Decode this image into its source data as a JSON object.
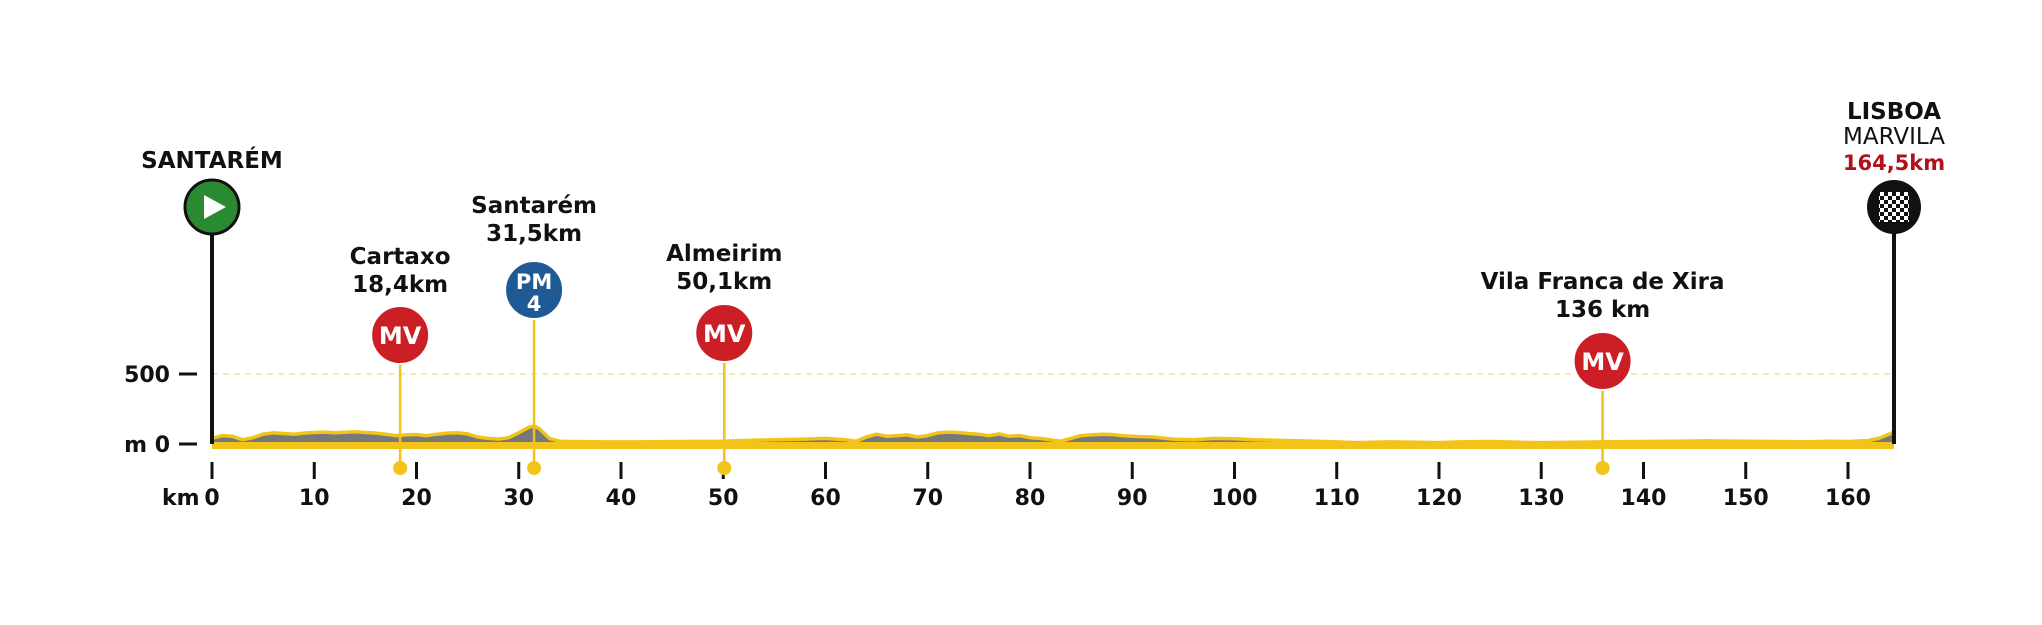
{
  "chart_data": {
    "type": "area",
    "x_unit": "km",
    "y_unit": "m",
    "xlim": [
      0,
      164.5
    ],
    "ylim": [
      0,
      500
    ],
    "x_ticks": [
      0,
      10,
      20,
      30,
      40,
      50,
      60,
      70,
      80,
      90,
      100,
      110,
      120,
      130,
      140,
      150,
      160
    ],
    "y_ticks": [
      {
        "value": 0,
        "label": "m 0"
      },
      {
        "value": 500,
        "label": "500"
      }
    ],
    "elevation": [
      [
        0,
        40
      ],
      [
        1,
        60
      ],
      [
        2,
        55
      ],
      [
        3,
        30
      ],
      [
        4,
        45
      ],
      [
        5,
        70
      ],
      [
        6,
        80
      ],
      [
        7,
        75
      ],
      [
        8,
        70
      ],
      [
        9,
        78
      ],
      [
        10,
        82
      ],
      [
        11,
        85
      ],
      [
        12,
        80
      ],
      [
        13,
        84
      ],
      [
        14,
        88
      ],
      [
        15,
        82
      ],
      [
        16,
        78
      ],
      [
        17,
        70
      ],
      [
        18,
        60
      ],
      [
        19,
        65
      ],
      [
        20,
        68
      ],
      [
        21,
        60
      ],
      [
        22,
        70
      ],
      [
        23,
        78
      ],
      [
        24,
        80
      ],
      [
        25,
        72
      ],
      [
        26,
        50
      ],
      [
        27,
        40
      ],
      [
        28,
        35
      ],
      [
        29,
        45
      ],
      [
        30,
        80
      ],
      [
        31,
        120
      ],
      [
        31.5,
        130
      ],
      [
        32,
        110
      ],
      [
        33,
        40
      ],
      [
        34,
        20
      ],
      [
        35,
        18
      ],
      [
        38,
        15
      ],
      [
        42,
        15
      ],
      [
        46,
        18
      ],
      [
        50,
        20
      ],
      [
        52,
        25
      ],
      [
        55,
        30
      ],
      [
        58,
        35
      ],
      [
        60,
        40
      ],
      [
        62,
        30
      ],
      [
        63,
        20
      ],
      [
        64,
        50
      ],
      [
        65,
        70
      ],
      [
        66,
        55
      ],
      [
        67,
        60
      ],
      [
        68,
        65
      ],
      [
        69,
        50
      ],
      [
        70,
        60
      ],
      [
        71,
        80
      ],
      [
        72,
        85
      ],
      [
        73,
        82
      ],
      [
        74,
        75
      ],
      [
        75,
        70
      ],
      [
        76,
        60
      ],
      [
        77,
        72
      ],
      [
        78,
        55
      ],
      [
        79,
        60
      ],
      [
        80,
        45
      ],
      [
        81,
        40
      ],
      [
        82,
        30
      ],
      [
        83,
        20
      ],
      [
        84,
        40
      ],
      [
        85,
        60
      ],
      [
        86,
        65
      ],
      [
        87,
        70
      ],
      [
        88,
        68
      ],
      [
        89,
        60
      ],
      [
        90,
        55
      ],
      [
        92,
        50
      ],
      [
        94,
        35
      ],
      [
        96,
        30
      ],
      [
        98,
        40
      ],
      [
        100,
        38
      ],
      [
        102,
        30
      ],
      [
        105,
        25
      ],
      [
        108,
        20
      ],
      [
        110,
        15
      ],
      [
        112,
        10
      ],
      [
        115,
        15
      ],
      [
        118,
        12
      ],
      [
        120,
        10
      ],
      [
        122,
        15
      ],
      [
        125,
        18
      ],
      [
        128,
        12
      ],
      [
        130,
        10
      ],
      [
        133,
        12
      ],
      [
        136,
        15
      ],
      [
        140,
        18
      ],
      [
        143,
        20
      ],
      [
        146,
        22
      ],
      [
        150,
        20
      ],
      [
        153,
        18
      ],
      [
        156,
        15
      ],
      [
        158,
        20
      ],
      [
        160,
        18
      ],
      [
        162,
        25
      ],
      [
        163,
        40
      ],
      [
        164.5,
        85
      ]
    ],
    "points": [
      {
        "kind": "start",
        "name": "SANTARÉM",
        "km": 0
      },
      {
        "kind": "MV",
        "name": "Cartaxo",
        "km_label": "18,4km",
        "km": 18.4
      },
      {
        "kind": "PM",
        "name": "Santarém",
        "km_label": "31,5km",
        "km": 31.5,
        "category": "4"
      },
      {
        "kind": "MV",
        "name": "Almeirim",
        "km_label": "50,1km",
        "km": 50.1
      },
      {
        "kind": "MV",
        "name": "Vila Franca de Xira",
        "km_label": "136 km",
        "km": 136
      },
      {
        "kind": "finish",
        "name": "LISBOA",
        "subname": "MARVILA",
        "km_label": "164,5km",
        "km": 164.5
      }
    ]
  },
  "labels": {
    "km_axis": "km",
    "mv_badge": "MV",
    "pm_badge": "PM"
  },
  "colors": {
    "start": "#2a8a32",
    "mv": "#cc1f25",
    "pm": "#1f5a96",
    "finish": "#111111",
    "profile_line": "#f2c318",
    "profile_fill": "#77787a",
    "marker_dot": "#f2c318",
    "km_red": "#b1121a"
  }
}
